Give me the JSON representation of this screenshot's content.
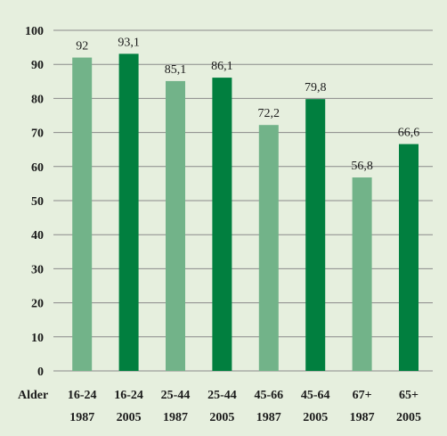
{
  "chart_data": {
    "type": "bar",
    "x_axis_prefix": "Alder",
    "categories": [
      [
        "16-24",
        "1987"
      ],
      [
        "16-24",
        "2005"
      ],
      [
        "25-44",
        "1987"
      ],
      [
        "25-44",
        "2005"
      ],
      [
        "45-66",
        "1987"
      ],
      [
        "45-64",
        "2005"
      ],
      [
        "67+",
        "1987"
      ],
      [
        "65+",
        "2005"
      ]
    ],
    "values": [
      92,
      93.1,
      85.1,
      86.1,
      72.2,
      79.8,
      56.8,
      66.6
    ],
    "value_labels": [
      "92",
      "93,1",
      "85,1",
      "86,1",
      "72,2",
      "79,8",
      "56,8",
      "66,6"
    ],
    "ylim": [
      0,
      100
    ],
    "yticks": [
      "0",
      "10",
      "20",
      "30",
      "40",
      "50",
      "60",
      "70",
      "80",
      "90",
      "100"
    ],
    "grid": true,
    "colors": {
      "background": "#e6efde",
      "bar_1987": "#72b389",
      "bar_2005": "#017f3f",
      "grid": "#8a8a8a"
    }
  }
}
